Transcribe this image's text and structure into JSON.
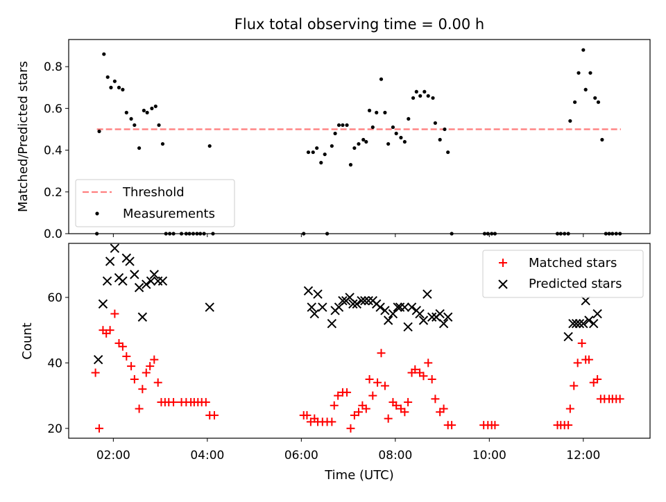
{
  "title": "Flux total observing time = 0.00 h",
  "chart_data": [
    {
      "type": "scatter",
      "ylabel": "Matched/Predicted stars",
      "xlabel": "",
      "xlim": [
        1.05,
        13.42
      ],
      "ylim": [
        0,
        0.93
      ],
      "yticks": [
        0.0,
        0.2,
        0.4,
        0.6,
        0.8
      ],
      "ytick_labels": [
        "0.0",
        "0.2",
        "0.4",
        "0.6",
        "0.8"
      ],
      "xticks": [
        2,
        4,
        6,
        8,
        10,
        12
      ],
      "legend_position": "lower-left",
      "legend": [
        {
          "label": "Threshold",
          "kind": "dashed-line",
          "color": "#ff7f7f"
        },
        {
          "label": "Measurements",
          "kind": "dot",
          "color": "#000000"
        }
      ],
      "threshold": {
        "name": "Threshold",
        "y": 0.5,
        "x_range": [
          1.65,
          12.8
        ],
        "color": "#ff7f7f"
      },
      "series": [
        {
          "name": "Measurements",
          "color": "#000000",
          "points": [
            [
              1.65,
              0.0
            ],
            [
              1.7,
              0.49
            ],
            [
              1.8,
              0.86
            ],
            [
              1.88,
              0.75
            ],
            [
              1.95,
              0.7
            ],
            [
              2.03,
              0.73
            ],
            [
              2.12,
              0.7
            ],
            [
              2.2,
              0.69
            ],
            [
              2.28,
              0.58
            ],
            [
              2.38,
              0.55
            ],
            [
              2.45,
              0.52
            ],
            [
              2.55,
              0.41
            ],
            [
              2.65,
              0.59
            ],
            [
              2.72,
              0.58
            ],
            [
              2.82,
              0.6
            ],
            [
              2.9,
              0.61
            ],
            [
              2.97,
              0.52
            ],
            [
              3.05,
              0.43
            ],
            [
              3.12,
              0.0
            ],
            [
              3.2,
              0.0
            ],
            [
              3.28,
              0.0
            ],
            [
              3.45,
              0.0
            ],
            [
              3.55,
              0.0
            ],
            [
              3.62,
              0.0
            ],
            [
              3.7,
              0.0
            ],
            [
              3.78,
              0.0
            ],
            [
              3.85,
              0.0
            ],
            [
              3.93,
              0.0
            ],
            [
              4.05,
              0.42
            ],
            [
              4.12,
              0.0
            ],
            [
              6.05,
              0.0
            ],
            [
              6.15,
              0.39
            ],
            [
              6.25,
              0.39
            ],
            [
              6.33,
              0.41
            ],
            [
              6.42,
              0.34
            ],
            [
              6.5,
              0.38
            ],
            [
              6.55,
              0.0
            ],
            [
              6.65,
              0.42
            ],
            [
              6.72,
              0.48
            ],
            [
              6.8,
              0.52
            ],
            [
              6.88,
              0.52
            ],
            [
              6.97,
              0.52
            ],
            [
              7.05,
              0.33
            ],
            [
              7.13,
              0.41
            ],
            [
              7.22,
              0.43
            ],
            [
              7.32,
              0.45
            ],
            [
              7.38,
              0.44
            ],
            [
              7.45,
              0.59
            ],
            [
              7.52,
              0.51
            ],
            [
              7.6,
              0.58
            ],
            [
              7.7,
              0.74
            ],
            [
              7.78,
              0.58
            ],
            [
              7.85,
              0.43
            ],
            [
              7.95,
              0.51
            ],
            [
              8.02,
              0.48
            ],
            [
              8.12,
              0.46
            ],
            [
              8.2,
              0.44
            ],
            [
              8.28,
              0.55
            ],
            [
              8.38,
              0.65
            ],
            [
              8.45,
              0.68
            ],
            [
              8.53,
              0.66
            ],
            [
              8.62,
              0.68
            ],
            [
              8.7,
              0.66
            ],
            [
              8.8,
              0.65
            ],
            [
              8.85,
              0.53
            ],
            [
              8.95,
              0.45
            ],
            [
              9.05,
              0.5
            ],
            [
              9.12,
              0.39
            ],
            [
              9.2,
              0.0
            ],
            [
              9.9,
              0.0
            ],
            [
              9.97,
              0.0
            ],
            [
              10.05,
              0.0
            ],
            [
              10.12,
              0.0
            ],
            [
              11.45,
              0.0
            ],
            [
              11.52,
              0.0
            ],
            [
              11.6,
              0.0
            ],
            [
              11.68,
              0.0
            ],
            [
              11.72,
              0.54
            ],
            [
              11.82,
              0.63
            ],
            [
              11.9,
              0.77
            ],
            [
              12.0,
              0.88
            ],
            [
              12.05,
              0.69
            ],
            [
              12.15,
              0.77
            ],
            [
              12.25,
              0.65
            ],
            [
              12.32,
              0.63
            ],
            [
              12.4,
              0.45
            ],
            [
              12.48,
              0.0
            ],
            [
              12.55,
              0.0
            ],
            [
              12.62,
              0.0
            ],
            [
              12.7,
              0.0
            ],
            [
              12.78,
              0.0
            ]
          ]
        }
      ]
    },
    {
      "type": "scatter",
      "ylabel": "Count",
      "xlabel": "Time (UTC)",
      "xlim": [
        1.05,
        13.42
      ],
      "ylim": [
        17,
        76.5
      ],
      "yticks": [
        20,
        40,
        60
      ],
      "ytick_labels": [
        "20",
        "40",
        "60"
      ],
      "xticks": [
        2,
        4,
        6,
        8,
        10,
        12
      ],
      "xtick_labels": [
        "02:00",
        "04:00",
        "06:00",
        "08:00",
        "10:00",
        "12:00"
      ],
      "legend_position": "upper-right",
      "legend": [
        {
          "label": "Matched stars",
          "kind": "plus",
          "color": "#ff0000"
        },
        {
          "label": "Predicted stars",
          "kind": "x",
          "color": "#000000"
        }
      ],
      "series": [
        {
          "name": "Matched stars",
          "color": "#ff0000",
          "marker": "plus",
          "points": [
            [
              1.62,
              37
            ],
            [
              1.7,
              20
            ],
            [
              1.78,
              50
            ],
            [
              1.85,
              49
            ],
            [
              1.93,
              50
            ],
            [
              2.03,
              55
            ],
            [
              2.12,
              46
            ],
            [
              2.2,
              45
            ],
            [
              2.28,
              42
            ],
            [
              2.38,
              39
            ],
            [
              2.45,
              35
            ],
            [
              2.55,
              26
            ],
            [
              2.62,
              32
            ],
            [
              2.7,
              37
            ],
            [
              2.78,
              39
            ],
            [
              2.87,
              41
            ],
            [
              2.95,
              34
            ],
            [
              3.02,
              28
            ],
            [
              3.1,
              28
            ],
            [
              3.18,
              28
            ],
            [
              3.28,
              28
            ],
            [
              3.45,
              28
            ],
            [
              3.55,
              28
            ],
            [
              3.65,
              28
            ],
            [
              3.72,
              28
            ],
            [
              3.8,
              28
            ],
            [
              3.88,
              28
            ],
            [
              3.97,
              28
            ],
            [
              4.05,
              24
            ],
            [
              4.15,
              24
            ],
            [
              6.05,
              24
            ],
            [
              6.12,
              24
            ],
            [
              6.2,
              22
            ],
            [
              6.28,
              23
            ],
            [
              6.35,
              22
            ],
            [
              6.45,
              22
            ],
            [
              6.55,
              22
            ],
            [
              6.65,
              22
            ],
            [
              6.7,
              27
            ],
            [
              6.78,
              30
            ],
            [
              6.88,
              31
            ],
            [
              6.97,
              31
            ],
            [
              7.05,
              20
            ],
            [
              7.13,
              24
            ],
            [
              7.22,
              25
            ],
            [
              7.3,
              27
            ],
            [
              7.38,
              26
            ],
            [
              7.45,
              35
            ],
            [
              7.52,
              30
            ],
            [
              7.62,
              34
            ],
            [
              7.7,
              43
            ],
            [
              7.78,
              33
            ],
            [
              7.85,
              23
            ],
            [
              7.95,
              28
            ],
            [
              8.02,
              27
            ],
            [
              8.12,
              26
            ],
            [
              8.2,
              25
            ],
            [
              8.27,
              28
            ],
            [
              8.35,
              37
            ],
            [
              8.42,
              38
            ],
            [
              8.52,
              37
            ],
            [
              8.6,
              36
            ],
            [
              8.7,
              40
            ],
            [
              8.78,
              35
            ],
            [
              8.85,
              29
            ],
            [
              8.95,
              25
            ],
            [
              9.03,
              26
            ],
            [
              9.12,
              21
            ],
            [
              9.2,
              21
            ],
            [
              9.88,
              21
            ],
            [
              9.97,
              21
            ],
            [
              10.05,
              21
            ],
            [
              10.12,
              21
            ],
            [
              11.45,
              21
            ],
            [
              11.52,
              21
            ],
            [
              11.6,
              21
            ],
            [
              11.68,
              21
            ],
            [
              11.72,
              26
            ],
            [
              11.8,
              33
            ],
            [
              11.88,
              40
            ],
            [
              11.97,
              46
            ],
            [
              12.05,
              41
            ],
            [
              12.12,
              41
            ],
            [
              12.22,
              34
            ],
            [
              12.3,
              35
            ],
            [
              12.37,
              29
            ],
            [
              12.45,
              29
            ],
            [
              12.55,
              29
            ],
            [
              12.62,
              29
            ],
            [
              12.7,
              29
            ],
            [
              12.78,
              29
            ]
          ]
        },
        {
          "name": "Predicted stars",
          "color": "#000000",
          "marker": "x",
          "points": [
            [
              1.68,
              41
            ],
            [
              1.78,
              58
            ],
            [
              1.87,
              65
            ],
            [
              1.93,
              71
            ],
            [
              2.03,
              75
            ],
            [
              2.12,
              66
            ],
            [
              2.2,
              65
            ],
            [
              2.28,
              72
            ],
            [
              2.35,
              71
            ],
            [
              2.45,
              67
            ],
            [
              2.55,
              63
            ],
            [
              2.62,
              54
            ],
            [
              2.7,
              64
            ],
            [
              2.8,
              65
            ],
            [
              2.87,
              67
            ],
            [
              2.95,
              65
            ],
            [
              3.05,
              65
            ],
            [
              4.05,
              57
            ],
            [
              6.15,
              62
            ],
            [
              6.22,
              57
            ],
            [
              6.28,
              55
            ],
            [
              6.35,
              61
            ],
            [
              6.45,
              57
            ],
            [
              6.65,
              52
            ],
            [
              6.72,
              56
            ],
            [
              6.8,
              57
            ],
            [
              6.88,
              59
            ],
            [
              6.95,
              59
            ],
            [
              7.03,
              60
            ],
            [
              7.1,
              58
            ],
            [
              7.18,
              58
            ],
            [
              7.28,
              59
            ],
            [
              7.35,
              59
            ],
            [
              7.43,
              59
            ],
            [
              7.52,
              59
            ],
            [
              7.6,
              58
            ],
            [
              7.68,
              57
            ],
            [
              7.78,
              56
            ],
            [
              7.85,
              53
            ],
            [
              7.95,
              55
            ],
            [
              8.05,
              57
            ],
            [
              8.1,
              57
            ],
            [
              8.2,
              57
            ],
            [
              8.27,
              51
            ],
            [
              8.35,
              57
            ],
            [
              8.45,
              56
            ],
            [
              8.52,
              55
            ],
            [
              8.6,
              53
            ],
            [
              8.68,
              61
            ],
            [
              8.78,
              54
            ],
            [
              8.87,
              54
            ],
            [
              8.95,
              55
            ],
            [
              9.03,
              52
            ],
            [
              9.12,
              54
            ],
            [
              11.68,
              48
            ],
            [
              11.78,
              52
            ],
            [
              11.85,
              52
            ],
            [
              11.92,
              52
            ],
            [
              12.0,
              52
            ],
            [
              12.05,
              59
            ],
            [
              12.12,
              53
            ],
            [
              12.22,
              52
            ],
            [
              12.3,
              55
            ],
            [
              12.4,
              64
            ]
          ]
        }
      ]
    }
  ]
}
